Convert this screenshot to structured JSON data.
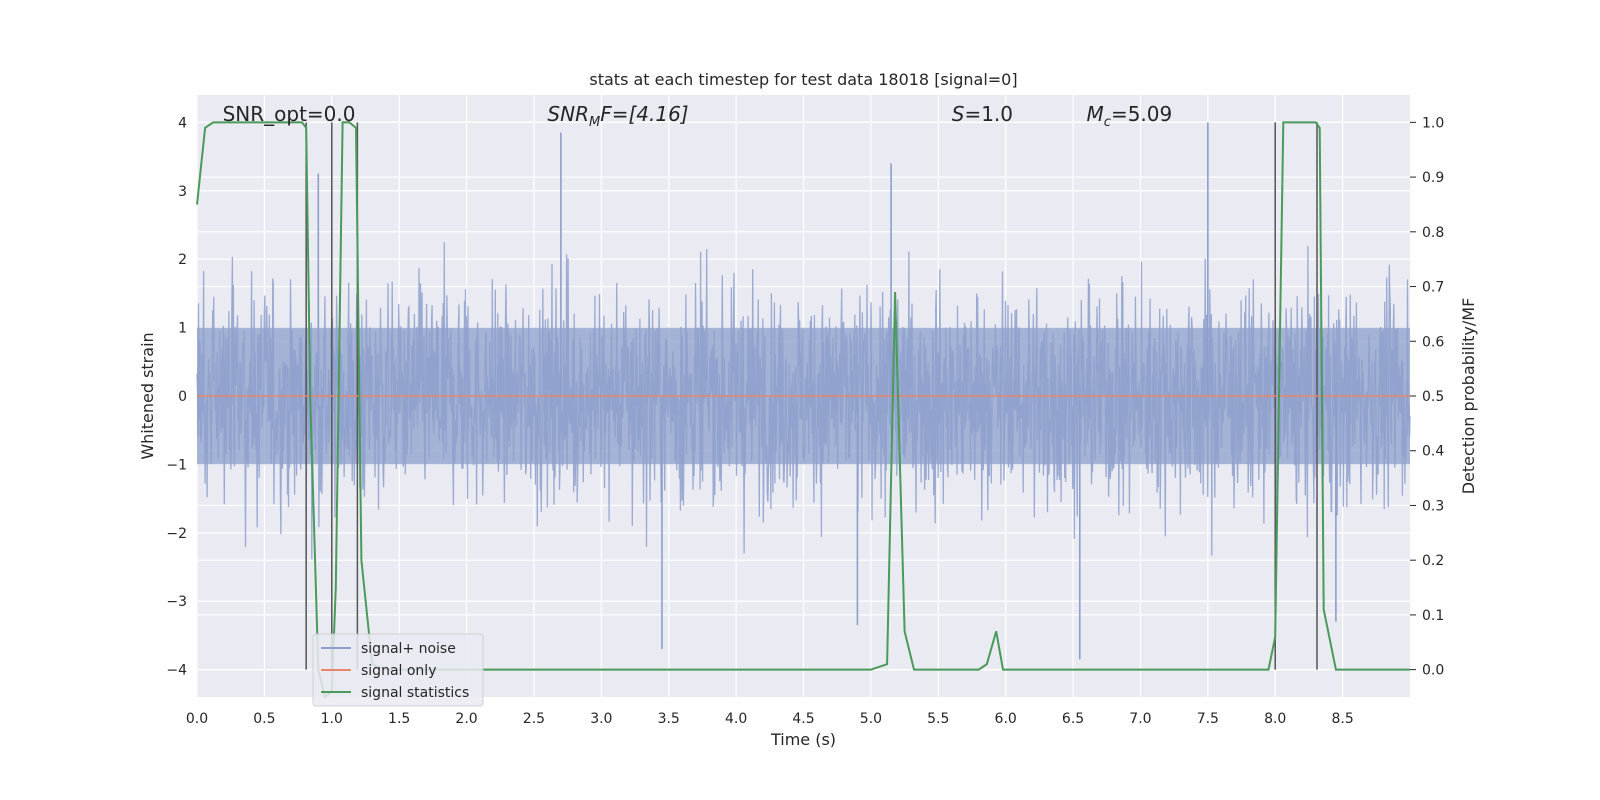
{
  "chart_data": {
    "type": "line",
    "title": "stats at each timestep for test data 18018 [signal=0]",
    "xlabel": "Time (s)",
    "ylabel": "Whitened strain",
    "y2label": "Detection probability/MF",
    "xlim": [
      0.0,
      9.0
    ],
    "ylim": [
      -4.4,
      4.4
    ],
    "y2lim": [
      -0.05,
      1.05
    ],
    "xticks": [
      "0.0",
      "0.5",
      "1.0",
      "1.5",
      "2.0",
      "2.5",
      "3.0",
      "3.5",
      "4.0",
      "4.5",
      "5.0",
      "5.5",
      "6.0",
      "6.5",
      "7.0",
      "7.5",
      "8.0",
      "8.5"
    ],
    "yticks": [
      "4",
      "3",
      "2",
      "1",
      "0",
      "−1",
      "−2",
      "−3",
      "−4"
    ],
    "y2ticks": [
      "1.0",
      "0.9",
      "0.8",
      "0.7",
      "0.6",
      "0.5",
      "0.4",
      "0.3",
      "0.2",
      "0.1",
      "0.0"
    ],
    "grid": true,
    "legend_position": "lower-left",
    "annotations": {
      "snr_opt": "SNR_opt=0.0",
      "snr_mf_main": "SNR",
      "snr_mf_sub": "M",
      "snr_mf_rest": "F=[4.16]",
      "s_var": "S",
      "s_rest": "=1.0",
      "mc_var": "M",
      "mc_sub": "c",
      "mc_rest": "=5.09"
    },
    "series": [
      {
        "name": "signal+ noise",
        "color": "#8c9fcb",
        "axis": "left",
        "note_style": "dense noise trace",
        "envelope_core": 1.0,
        "envelope_peaks": [
          {
            "x": 0.9,
            "y": 3.25
          },
          {
            "x": 2.7,
            "y": 3.85
          },
          {
            "x": 5.15,
            "y": 3.4
          },
          {
            "x": 7.5,
            "y": 4.0
          },
          {
            "x": 3.45,
            "y": -3.7
          },
          {
            "x": 4.9,
            "y": -3.35
          },
          {
            "x": 6.55,
            "y": -3.85
          },
          {
            "x": 8.45,
            "y": -3.3
          }
        ]
      },
      {
        "name": "signal only",
        "color": "#e8866b",
        "axis": "left",
        "x": [
          0.0,
          9.0
        ],
        "y": [
          0.0,
          0.0
        ]
      },
      {
        "name": "signal statistics",
        "color": "#4a9a5a",
        "axis": "right",
        "x": [
          0.0,
          0.06,
          0.12,
          0.3,
          0.6,
          0.78,
          0.81,
          0.84,
          0.9,
          0.95,
          1.0,
          1.03,
          1.08,
          1.13,
          1.18,
          1.22,
          1.3,
          1.4,
          2.0,
          3.0,
          4.0,
          5.0,
          5.12,
          5.18,
          5.25,
          5.32,
          5.5,
          5.8,
          5.86,
          5.93,
          5.98,
          6.1,
          7.0,
          7.95,
          8.0,
          8.06,
          8.1,
          8.2,
          8.3,
          8.33,
          8.36,
          8.45,
          9.0
        ],
        "y": [
          0.85,
          0.99,
          1.0,
          1.0,
          1.0,
          1.0,
          0.99,
          0.5,
          0.0,
          -0.05,
          -0.04,
          0.15,
          1.0,
          1.0,
          0.99,
          0.2,
          0.01,
          0.0,
          0.0,
          0.0,
          0.0,
          0.0,
          0.01,
          0.69,
          0.07,
          0.0,
          0.0,
          0.0,
          0.01,
          0.07,
          0.0,
          0.0,
          0.0,
          0.0,
          0.06,
          1.0,
          1.0,
          1.0,
          1.0,
          0.99,
          0.11,
          0.0,
          0.0
        ]
      }
    ],
    "vertical_lines": [
      {
        "x": 0.81,
        "y_from": -4.0,
        "y_to": 4.0
      },
      {
        "x": 1.0,
        "y_from": -4.0,
        "y_to": 4.0
      },
      {
        "x": 1.19,
        "y_from": -4.0,
        "y_to": 4.0
      },
      {
        "x": 8.0,
        "y_from": -4.0,
        "y_to": 4.0
      },
      {
        "x": 8.31,
        "y_from": -4.0,
        "y_to": 4.0
      }
    ],
    "styles": {
      "plot_background": "#eaeaf2",
      "grid_color": "#ffffff",
      "vline_color": "#555555"
    }
  }
}
